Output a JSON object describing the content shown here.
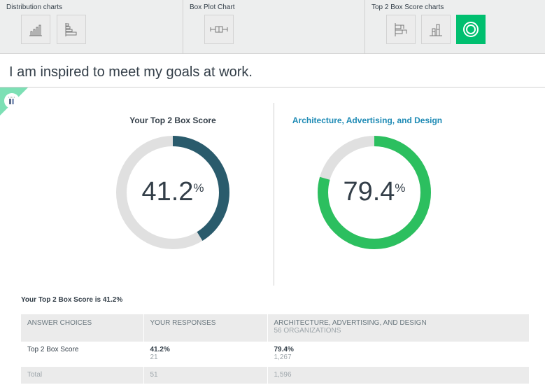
{
  "toolbar": {
    "sections": [
      {
        "label": "Distribution charts",
        "buttons": [
          "bar-chart-vertical-icon",
          "bar-chart-horizontal-icon"
        ]
      },
      {
        "label": "Box Plot Chart",
        "buttons": [
          "box-plot-icon"
        ]
      },
      {
        "label": "Top 2 Box Score charts",
        "buttons": [
          "stacked-horizontal-icon",
          "stacked-vertical-icon",
          "donut-chart-icon"
        ],
        "active": "donut-chart-icon"
      }
    ]
  },
  "question": "I am inspired to meet my goals at work.",
  "charts": [
    {
      "title": "Your Top 2 Box Score",
      "value": "41.2",
      "unit": "%",
      "percent": 41.2,
      "color": "#2a5b6c"
    },
    {
      "title": "Architecture, Advertising, and Design",
      "value": "79.4",
      "unit": "%",
      "percent": 79.4,
      "color": "#2cbf5f",
      "title_color": "#1f8bb5"
    }
  ],
  "summary": "Your Top 2 Box Score is 41.2%",
  "table": {
    "headers": [
      "ANSWER CHOICES",
      "YOUR RESPONSES",
      "ARCHITECTURE, ADVERTISING, AND DESIGN"
    ],
    "header_sub": "56 ORGANIZATIONS",
    "row": {
      "label": "Top 2 Box Score",
      "yours_pct": "41.2%",
      "yours_n": "21",
      "bench_pct": "79.4%",
      "bench_n": "1,267"
    },
    "total": {
      "label": "Total",
      "yours": "51",
      "bench": "1,596"
    }
  }
}
